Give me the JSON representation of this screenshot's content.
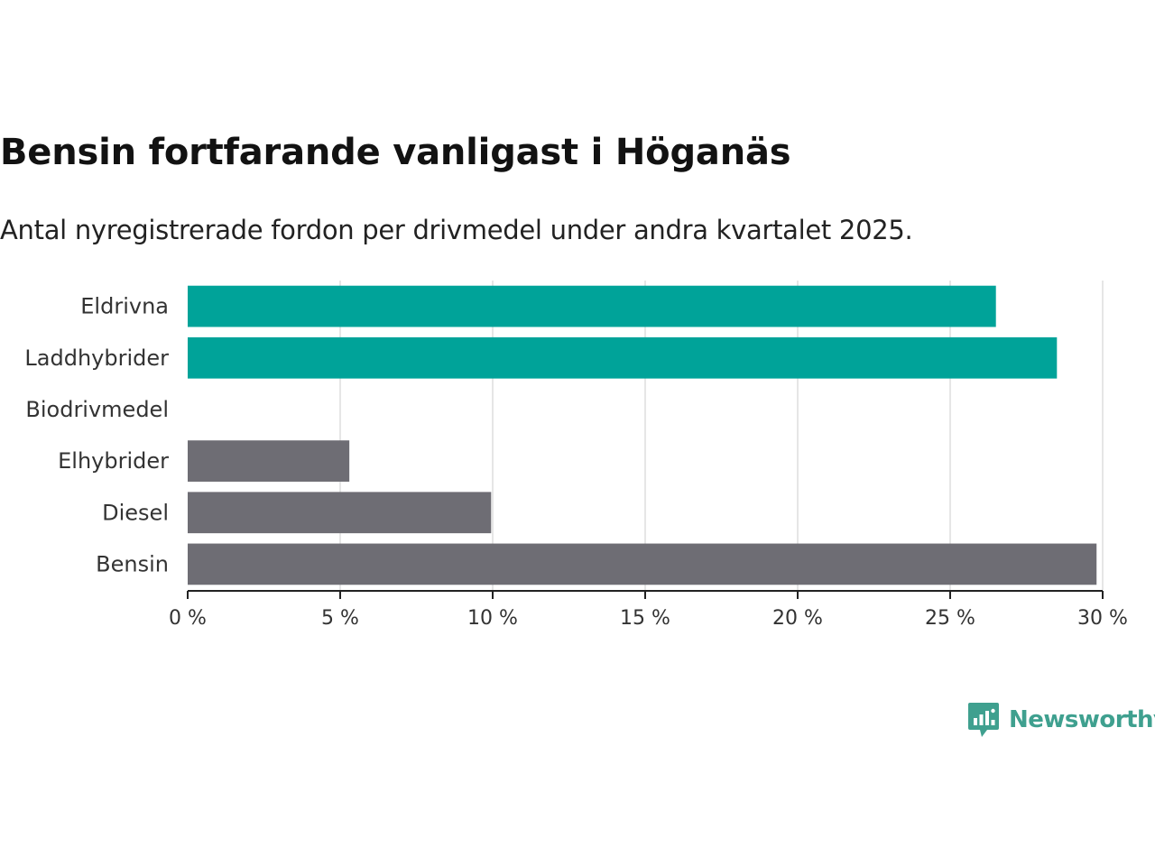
{
  "title": "Bensin fortfarande vanligast i Höganäs",
  "subtitle": "Antal nyregistrerade fordon per drivmedel under andra kvartalet 2025.",
  "logo": {
    "text": "Newsworthy",
    "icon": "bar-chart-speech-bubble-icon"
  },
  "colors": {
    "highlight": "#00a399",
    "neutral": "#6e6d74",
    "grid": "#dddddd",
    "axis": "#222222",
    "brand": "#3fa08f"
  },
  "chart_data": {
    "type": "bar",
    "orientation": "horizontal",
    "categories": [
      "Eldrivna",
      "Laddhybrider",
      "Biodrivmedel",
      "Elhybrider",
      "Diesel",
      "Bensin"
    ],
    "values": [
      26.5,
      28.5,
      0,
      5.3,
      9.95,
      29.8
    ],
    "bar_colors": [
      "#00a399",
      "#00a399",
      "#00a399",
      "#6e6d74",
      "#6e6d74",
      "#6e6d74"
    ],
    "x_ticks": [
      0,
      5,
      10,
      15,
      20,
      25,
      30
    ],
    "x_tick_labels": [
      "0 %",
      "5 %",
      "10 %",
      "15 %",
      "20 %",
      "25 %",
      "30 %"
    ],
    "xlim": [
      0,
      30
    ],
    "grid": true,
    "title": "Bensin fortfarande vanligast i Höganäs",
    "xlabel": "",
    "ylabel": ""
  }
}
